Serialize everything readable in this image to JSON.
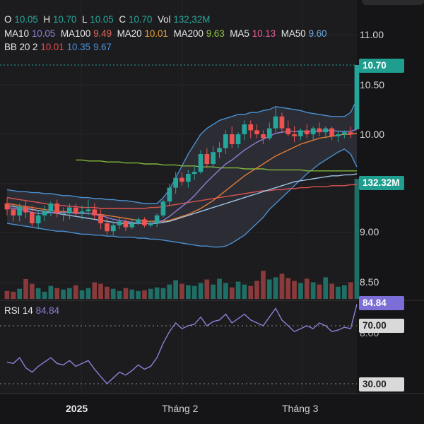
{
  "legend": {
    "ohlc": {
      "o_label": "O",
      "o": "10.05",
      "h_label": "H",
      "h": "10.70",
      "l_label": "L",
      "l": "10.05",
      "c_label": "C",
      "c": "10.70",
      "vol_label": "Vol",
      "vol": "132,32M"
    },
    "ma": [
      {
        "label": "MA10",
        "value": "10.05",
        "color": "#8e7fd6"
      },
      {
        "label": "MA100",
        "value": "9.49",
        "color": "#e0645a"
      },
      {
        "label": "MA20",
        "value": "10.01",
        "color": "#e8a035"
      },
      {
        "label": "MA200",
        "value": "9.63",
        "color": "#8dc43e"
      },
      {
        "label": "MA5",
        "value": "10.13",
        "color": "#e85a98"
      },
      {
        "label": "MA50",
        "value": "9.60",
        "color": "#6fa8dc"
      }
    ],
    "bb": {
      "label": "BB 20 2",
      "v1": "10.01",
      "v2": "10.35",
      "v3": "9.67",
      "c1": "#e84a4a",
      "c2": "#4a90d9",
      "c3": "#4a90d9"
    },
    "rsi": {
      "label": "RSI 14",
      "value": "84.84",
      "color": "#8e7fd6"
    }
  },
  "tags": {
    "price": "10.70",
    "volume": "132.32M",
    "rsi": "84.84",
    "rsi_upper": "70.00",
    "rsi_lower": "30.00"
  },
  "y_axis": {
    "ticks": [
      {
        "label": "11.00",
        "value": 11.0
      },
      {
        "label": "10.50",
        "value": 10.5
      },
      {
        "label": "10.00",
        "value": 10.0
      },
      {
        "label": "9.00",
        "value": 9.0
      },
      {
        "label": "8.50",
        "value": 8.5
      }
    ],
    "hidden_rsi_label": "8.00"
  },
  "x_axis": {
    "labels": [
      "2025",
      "Tháng 2",
      "Tháng 3"
    ]
  },
  "colors": {
    "up": "#26a69a",
    "down": "#ef5350",
    "rsi": "#8e7fd6",
    "price_tag": "#1f9d8f",
    "volume_tag": "#1f9d8f",
    "rsi_tag": "#7b6ed6"
  },
  "chart_data": {
    "type": "candlestick",
    "candles": [
      [
        9.3,
        9.36,
        9.18,
        9.24
      ],
      [
        9.24,
        9.3,
        9.12,
        9.18
      ],
      [
        9.18,
        9.3,
        9.12,
        9.27
      ],
      [
        9.27,
        9.33,
        9.15,
        9.21
      ],
      [
        9.21,
        9.28,
        9.06,
        9.1
      ],
      [
        9.1,
        9.22,
        9.04,
        9.18
      ],
      [
        9.18,
        9.28,
        9.12,
        9.22
      ],
      [
        9.22,
        9.32,
        9.17,
        9.3
      ],
      [
        9.3,
        9.34,
        9.16,
        9.2
      ],
      [
        9.2,
        9.26,
        9.12,
        9.2
      ],
      [
        9.2,
        9.3,
        9.14,
        9.26
      ],
      [
        9.26,
        9.3,
        9.17,
        9.2
      ],
      [
        9.2,
        9.28,
        9.14,
        9.22
      ],
      [
        9.22,
        9.34,
        9.18,
        9.24
      ],
      [
        9.24,
        9.3,
        9.14,
        9.18
      ],
      [
        9.18,
        9.24,
        9.04,
        9.1
      ],
      [
        9.1,
        9.16,
        8.98,
        9.02
      ],
      [
        9.02,
        9.12,
        8.98,
        9.08
      ],
      [
        9.08,
        9.16,
        9.04,
        9.12
      ],
      [
        9.12,
        9.14,
        9.02,
        9.06
      ],
      [
        9.06,
        9.14,
        9.04,
        9.1
      ],
      [
        9.1,
        9.16,
        9.08,
        9.14
      ],
      [
        9.14,
        9.16,
        9.06,
        9.08
      ],
      [
        9.08,
        9.12,
        9.06,
        9.1
      ],
      [
        9.1,
        9.2,
        9.06,
        9.18
      ],
      [
        9.18,
        9.34,
        9.16,
        9.32
      ],
      [
        9.32,
        9.5,
        9.28,
        9.46
      ],
      [
        9.46,
        9.62,
        9.4,
        9.56
      ],
      [
        9.56,
        9.62,
        9.48,
        9.52
      ],
      [
        9.52,
        9.64,
        9.46,
        9.6
      ],
      [
        9.6,
        9.68,
        9.54,
        9.62
      ],
      [
        9.62,
        9.84,
        9.6,
        9.8
      ],
      [
        9.8,
        9.86,
        9.66,
        9.7
      ],
      [
        9.7,
        9.88,
        9.66,
        9.82
      ],
      [
        9.82,
        9.92,
        9.76,
        9.86
      ],
      [
        9.86,
        10.04,
        9.8,
        10.0
      ],
      [
        10.0,
        10.08,
        9.86,
        9.9
      ],
      [
        9.9,
        10.02,
        9.86,
        10.0
      ],
      [
        10.0,
        10.14,
        9.94,
        10.1
      ],
      [
        10.1,
        10.14,
        9.96,
        10.04
      ],
      [
        10.04,
        10.1,
        9.96,
        10.0
      ],
      [
        10.0,
        10.04,
        9.9,
        9.96
      ],
      [
        9.96,
        10.12,
        9.94,
        10.06
      ],
      [
        10.06,
        10.28,
        10.02,
        10.18
      ],
      [
        10.18,
        10.22,
        10.02,
        10.06
      ],
      [
        10.06,
        10.14,
        9.98,
        10.0
      ],
      [
        10.0,
        10.08,
        9.92,
        9.98
      ],
      [
        9.98,
        10.06,
        9.94,
        10.04
      ],
      [
        10.04,
        10.1,
        9.96,
        10.0
      ],
      [
        10.0,
        10.08,
        9.94,
        10.06
      ],
      [
        10.06,
        10.12,
        9.98,
        10.02
      ],
      [
        10.02,
        10.08,
        9.96,
        10.06
      ],
      [
        10.06,
        10.08,
        9.94,
        9.98
      ],
      [
        9.98,
        10.04,
        9.92,
        10.0
      ],
      [
        10.0,
        10.04,
        9.96,
        10.02
      ],
      [
        10.02,
        10.08,
        9.96,
        10.0
      ],
      [
        10.05,
        10.7,
        10.05,
        10.7
      ]
    ],
    "volume": [
      0.22,
      0.2,
      0.28,
      0.55,
      0.42,
      0.3,
      0.2,
      0.36,
      0.3,
      0.26,
      0.3,
      0.38,
      0.24,
      0.3,
      0.46,
      0.42,
      0.34,
      0.28,
      0.22,
      0.3,
      0.26,
      0.22,
      0.24,
      0.28,
      0.32,
      0.3,
      0.4,
      0.52,
      0.42,
      0.38,
      0.36,
      0.44,
      0.54,
      0.4,
      0.56,
      0.44,
      0.32,
      0.48,
      0.4,
      0.36,
      0.5,
      0.78,
      0.54,
      0.6,
      0.7,
      0.58,
      0.5,
      0.44,
      0.56,
      0.46,
      0.4,
      0.6,
      0.42,
      0.34,
      0.38,
      0.46,
      1.0
    ],
    "rsi": [
      45,
      44,
      48,
      41,
      38,
      42,
      45,
      48,
      44,
      43,
      46,
      42,
      44,
      46,
      40,
      35,
      30,
      34,
      38,
      36,
      39,
      43,
      40,
      42,
      48,
      58,
      66,
      72,
      68,
      70,
      71,
      76,
      70,
      73,
      74,
      78,
      72,
      75,
      78,
      74,
      72,
      70,
      76,
      82,
      74,
      70,
      66,
      68,
      70,
      68,
      72,
      70,
      66,
      67,
      69,
      68,
      84.84
    ],
    "ma10": [
      9.26,
      9.25,
      9.24,
      9.23,
      9.21,
      9.2,
      9.2,
      9.21,
      9.21,
      9.21,
      9.21,
      9.2,
      9.2,
      9.2,
      9.19,
      9.18,
      9.16,
      9.14,
      9.13,
      9.12,
      9.11,
      9.1,
      9.1,
      9.1,
      9.11,
      9.13,
      9.17,
      9.22,
      9.27,
      9.32,
      9.38,
      9.45,
      9.52,
      9.58,
      9.64,
      9.7,
      9.74,
      9.79,
      9.84,
      9.88,
      9.92,
      9.95,
      9.98,
      10.01,
      10.02,
      10.03,
      10.03,
      10.03,
      10.03,
      10.03,
      10.03,
      10.04,
      10.04,
      10.03,
      10.03,
      10.03,
      10.05
    ],
    "ma20": [
      9.3,
      9.29,
      9.28,
      9.27,
      9.26,
      9.25,
      9.24,
      9.23,
      9.22,
      9.22,
      9.21,
      9.21,
      9.2,
      9.2,
      9.19,
      9.19,
      9.18,
      9.17,
      9.16,
      9.15,
      9.14,
      9.13,
      9.12,
      9.12,
      9.12,
      9.12,
      9.13,
      9.15,
      9.17,
      9.19,
      9.22,
      9.25,
      9.29,
      9.33,
      9.38,
      9.43,
      9.48,
      9.53,
      9.58,
      9.62,
      9.66,
      9.7,
      9.74,
      9.78,
      9.81,
      9.84,
      9.87,
      9.9,
      9.92,
      9.94,
      9.96,
      9.97,
      9.98,
      9.99,
      10.0,
      10.0,
      10.01
    ],
    "ma50": [
      9.28,
      9.27,
      9.26,
      9.25,
      9.24,
      9.23,
      9.22,
      9.21,
      9.2,
      9.19,
      9.18,
      9.17,
      9.16,
      9.15,
      9.14,
      9.13,
      9.12,
      9.11,
      9.1,
      9.1,
      9.1,
      9.1,
      9.1,
      9.1,
      9.1,
      9.11,
      9.12,
      9.14,
      9.16,
      9.18,
      9.2,
      9.22,
      9.24,
      9.26,
      9.28,
      9.3,
      9.32,
      9.34,
      9.36,
      9.38,
      9.4,
      9.42,
      9.44,
      9.46,
      9.48,
      9.5,
      9.52,
      9.53,
      9.54,
      9.55,
      9.56,
      9.57,
      9.58,
      9.58,
      9.59,
      9.59,
      9.6
    ],
    "ma100": [
      9.36,
      9.35,
      9.34,
      9.33,
      9.32,
      9.31,
      9.3,
      9.29,
      9.28,
      9.28,
      9.27,
      9.27,
      9.26,
      9.26,
      9.26,
      9.25,
      9.25,
      9.25,
      9.25,
      9.25,
      9.25,
      9.25,
      9.25,
      9.26,
      9.26,
      9.27,
      9.28,
      9.29,
      9.3,
      9.31,
      9.32,
      9.33,
      9.34,
      9.35,
      9.36,
      9.37,
      9.38,
      9.39,
      9.4,
      9.41,
      9.42,
      9.43,
      9.43,
      9.44,
      9.44,
      9.45,
      9.45,
      9.46,
      9.46,
      9.47,
      9.47,
      9.47,
      9.48,
      9.48,
      9.48,
      9.49,
      9.49
    ],
    "ma200_start_index": 11,
    "ma200": [
      9.74,
      9.74,
      9.73,
      9.73,
      9.73,
      9.72,
      9.72,
      9.72,
      9.71,
      9.71,
      9.71,
      9.7,
      9.7,
      9.7,
      9.69,
      9.69,
      9.69,
      9.68,
      9.68,
      9.68,
      9.67,
      9.67,
      9.67,
      9.66,
      9.66,
      9.66,
      9.66,
      9.65,
      9.65,
      9.65,
      9.65,
      9.64,
      9.64,
      9.64,
      9.64,
      9.64,
      9.64,
      9.63,
      9.63,
      9.63,
      9.63,
      9.63,
      9.63,
      9.63,
      9.63,
      9.63
    ],
    "bb_upper": [
      9.44,
      9.43,
      9.42,
      9.42,
      9.41,
      9.41,
      9.4,
      9.4,
      9.39,
      9.38,
      9.38,
      9.37,
      9.36,
      9.36,
      9.35,
      9.35,
      9.34,
      9.34,
      9.33,
      9.33,
      9.32,
      9.31,
      9.3,
      9.3,
      9.3,
      9.36,
      9.44,
      9.56,
      9.68,
      9.8,
      9.9,
      10.0,
      10.06,
      10.1,
      10.14,
      10.16,
      10.18,
      10.2,
      10.2,
      10.22,
      10.22,
      10.24,
      10.25,
      10.28,
      10.27,
      10.26,
      10.25,
      10.24,
      10.22,
      10.21,
      10.2,
      10.19,
      10.18,
      10.18,
      10.18,
      10.22,
      10.35
    ],
    "bb_lower": [
      9.1,
      9.09,
      9.08,
      9.07,
      9.06,
      9.05,
      9.04,
      9.03,
      9.02,
      9.02,
      9.01,
      9.0,
      8.99,
      8.99,
      8.98,
      8.98,
      8.97,
      8.97,
      8.96,
      8.96,
      8.96,
      8.95,
      8.95,
      8.94,
      8.94,
      8.93,
      8.92,
      8.91,
      8.9,
      8.89,
      8.88,
      8.87,
      8.87,
      8.86,
      8.86,
      8.87,
      8.9,
      8.94,
      8.98,
      9.04,
      9.1,
      9.16,
      9.24,
      9.3,
      9.36,
      9.42,
      9.48,
      9.54,
      9.6,
      9.65,
      9.7,
      9.74,
      9.78,
      9.82,
      9.85,
      9.8,
      9.67
    ],
    "price_line": 10.7,
    "rsi_levels": [
      70,
      30
    ],
    "y_range": [
      8.38,
      11.17
    ],
    "rsi_range": [
      9,
      90
    ]
  }
}
